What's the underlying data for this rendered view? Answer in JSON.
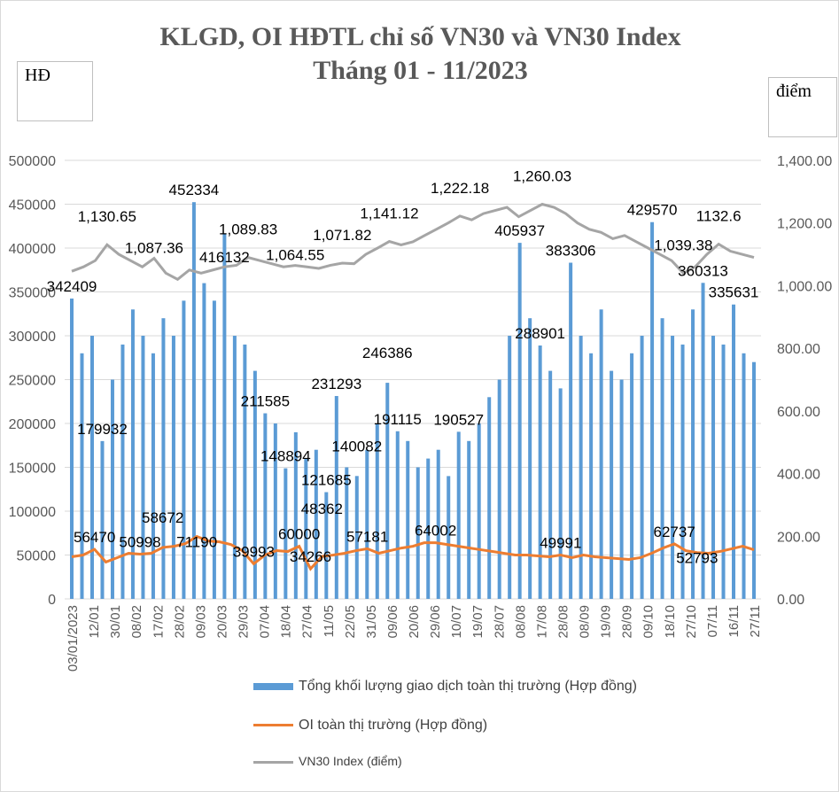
{
  "chart_data": {
    "type": "bar+line",
    "title": [
      "KLGD, OI HĐTL chỉ số VN30 và VN30 Index",
      "Tháng 01 - 11/2023"
    ],
    "y_left_label": "HĐ",
    "y_right_label": "điểm",
    "y_left_ticks": [
      "0",
      "50000",
      "100000",
      "150000",
      "200000",
      "250000",
      "300000",
      "350000",
      "400000",
      "450000",
      "500000"
    ],
    "y_right_ticks": [
      "0.00",
      "200.00",
      "400.00",
      "600.00",
      "800.00",
      "1,000.00",
      "1,200.00",
      "1,400.00"
    ],
    "ylim_left": [
      0,
      500000
    ],
    "ylim_right": [
      0,
      1400
    ],
    "x_tick_labels": [
      "03/01/2023",
      "12/01",
      "30/01",
      "08/02",
      "17/02",
      "28/02",
      "09/03",
      "20/03",
      "29/03",
      "07/04",
      "18/04",
      "27/04",
      "11/05",
      "22/05",
      "31/05",
      "09/06",
      "20/06",
      "29/06",
      "10/07",
      "19/07",
      "28/07",
      "08/08",
      "17/08",
      "28/08",
      "08/09",
      "19/09",
      "28/09",
      "09/10",
      "18/10",
      "27/10",
      "07/11",
      "16/11",
      "27/11"
    ],
    "grid": true,
    "legend_placement": "bottom",
    "colors": {
      "volume": "#5b9bd5",
      "oi": "#ed7d31",
      "vn30": "#a5a5a5"
    },
    "series": [
      {
        "name": "Tổng khối lượng giao dịch toàn thị trường (Hợp đồng)",
        "axis": "left",
        "kind": "bar",
        "values": [
          342409,
          280000,
          300000,
          179932,
          250000,
          290000,
          330000,
          300000,
          280000,
          320000,
          300000,
          340000,
          452334,
          360000,
          340000,
          416132,
          300000,
          290000,
          260000,
          211585,
          200000,
          148894,
          190000,
          160000,
          170000,
          121685,
          231293,
          150000,
          140082,
          170000,
          200000,
          246386,
          191115,
          180000,
          150000,
          160000,
          170000,
          140000,
          190527,
          180000,
          200000,
          230000,
          250000,
          300000,
          405937,
          320000,
          288901,
          260000,
          240000,
          383306,
          300000,
          280000,
          330000,
          260000,
          250000,
          280000,
          300000,
          429570,
          320000,
          300000,
          290000,
          330000,
          360313,
          300000,
          290000,
          335631,
          280000,
          270000
        ]
      },
      {
        "name": "OI toàn thị trường (Hợp đồng)",
        "axis": "left",
        "kind": "line",
        "values": [
          48000,
          50000,
          56470,
          42000,
          47000,
          52000,
          50998,
          52000,
          58672,
          60000,
          63000,
          71190,
          66000,
          65000,
          62000,
          55000,
          39993,
          50000,
          55000,
          54000,
          60000,
          34266,
          48362,
          50000,
          52000,
          55000,
          57181,
          52000,
          55000,
          58000,
          60000,
          64000,
          64002,
          62000,
          60000,
          58000,
          56000,
          54000,
          52000,
          50000,
          50000,
          49000,
          48000,
          49991,
          47000,
          50000,
          48000,
          47000,
          46000,
          45000,
          47000,
          52000,
          58000,
          62737,
          55000,
          52793,
          52000,
          54000,
          57000,
          60000,
          56000
        ]
      },
      {
        "name": "VN30 Index (điểm)",
        "axis": "right",
        "kind": "line",
        "values": [
          1046,
          1060,
          1080,
          1130.65,
          1100,
          1080,
          1060,
          1087.36,
          1040,
          1020,
          1050,
          1040,
          1050,
          1060,
          1065,
          1089.83,
          1080,
          1070,
          1060,
          1064.55,
          1060,
          1055,
          1065,
          1071.82,
          1070,
          1100,
          1120,
          1141.12,
          1130,
          1140,
          1160,
          1180,
          1200,
          1222.18,
          1210,
          1230,
          1240,
          1250,
          1220,
          1240,
          1260.03,
          1250,
          1230,
          1200,
          1180,
          1170,
          1150,
          1160,
          1140,
          1120,
          1100,
          1080,
          1039.38,
          1060,
          1100,
          1132.6,
          1110,
          1100,
          1090
        ]
      }
    ],
    "data_labels": {
      "volume": [
        [
          0,
          "342409"
        ],
        [
          3,
          "179932"
        ],
        [
          12,
          "452334"
        ],
        [
          15,
          "416132"
        ],
        [
          19,
          "211585"
        ],
        [
          21,
          "148894"
        ],
        [
          25,
          "121685"
        ],
        [
          26,
          "231293"
        ],
        [
          28,
          "140082"
        ],
        [
          31,
          "246386"
        ],
        [
          32,
          "191115"
        ],
        [
          38,
          "190527"
        ],
        [
          44,
          "405937"
        ],
        [
          46,
          "288901"
        ],
        [
          49,
          "383306"
        ],
        [
          57,
          "429570"
        ],
        [
          62,
          "360313"
        ],
        [
          65,
          "335631"
        ]
      ],
      "oi": [
        [
          2,
          "56470"
        ],
        [
          6,
          "50998"
        ],
        [
          8,
          "58672"
        ],
        [
          11,
          "71190"
        ],
        [
          16,
          "39993"
        ],
        [
          21,
          "34266"
        ],
        [
          20,
          "60000"
        ],
        [
          22,
          "48362"
        ],
        [
          26,
          "57181"
        ],
        [
          32,
          "64002"
        ],
        [
          43,
          "49991"
        ],
        [
          53,
          "62737"
        ],
        [
          55,
          "52793"
        ]
      ],
      "vn30": [
        [
          3,
          "1,130.65"
        ],
        [
          7,
          "1,087.36"
        ],
        [
          15,
          "1,089.83"
        ],
        [
          19,
          "1,064.55"
        ],
        [
          23,
          "1,071.82"
        ],
        [
          27,
          "1,141.12"
        ],
        [
          33,
          "1,222.18"
        ],
        [
          40,
          "1,260.03"
        ],
        [
          52,
          "1,039.38"
        ],
        [
          55,
          "1132.6"
        ]
      ]
    }
  }
}
